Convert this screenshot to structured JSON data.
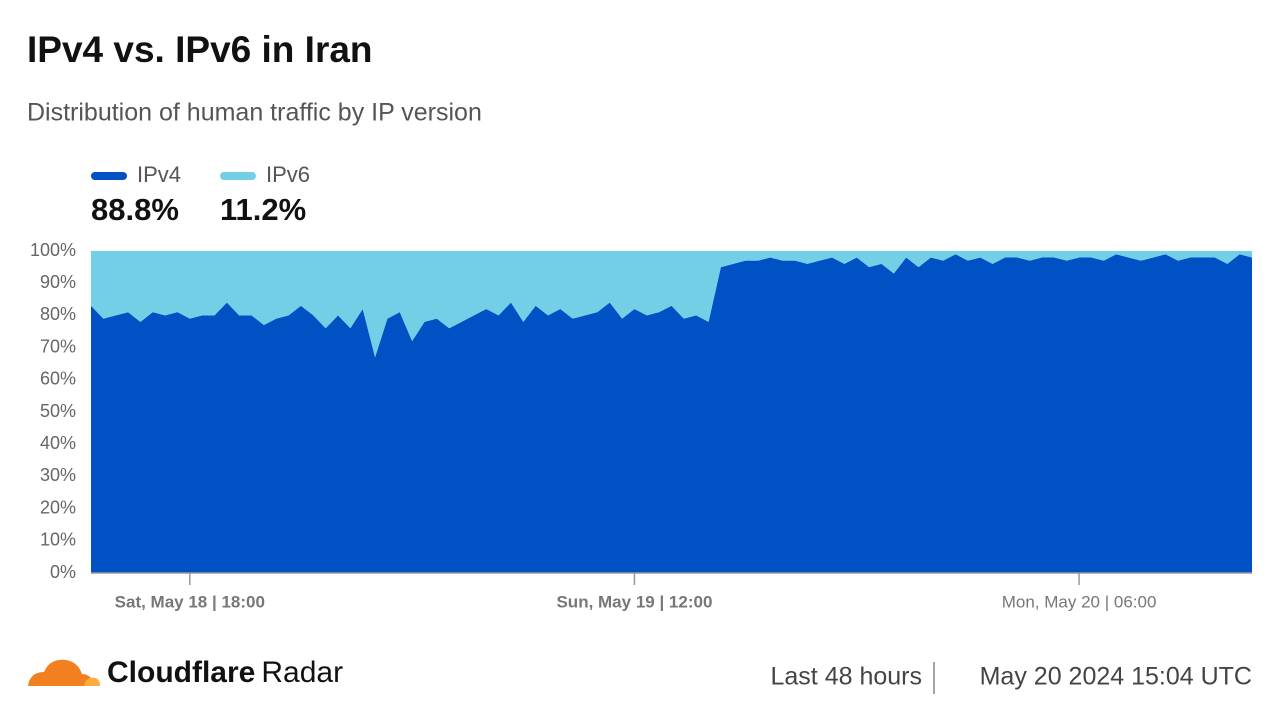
{
  "chart_data": {
    "type": "area",
    "stacked": true,
    "title": "IPv4 vs. IPv6 in Iran",
    "subtitle": "Distribution of human traffic by IP version",
    "x": [
      "May 18 14:00",
      "May 18 14:30",
      "May 18 15:00",
      "May 18 15:30",
      "May 18 16:00",
      "May 18 16:30",
      "May 18 17:00",
      "May 18 17:30",
      "May 18 18:00",
      "May 18 18:30",
      "May 18 19:00",
      "May 18 19:30",
      "May 18 20:00",
      "May 18 20:30",
      "May 18 21:00",
      "May 18 21:30",
      "May 18 22:00",
      "May 18 22:30",
      "May 18 23:00",
      "May 18 23:30",
      "May 19 00:00",
      "May 19 00:30",
      "May 19 01:00",
      "May 19 01:30",
      "May 19 02:00",
      "May 19 02:30",
      "May 19 03:00",
      "May 19 03:30",
      "May 19 04:00",
      "May 19 04:30",
      "May 19 05:00",
      "May 19 05:30",
      "May 19 06:00",
      "May 19 06:30",
      "May 19 07:00",
      "May 19 07:30",
      "May 19 08:00",
      "May 19 08:30",
      "May 19 09:00",
      "May 19 09:30",
      "May 19 10:00",
      "May 19 10:30",
      "May 19 11:00",
      "May 19 11:30",
      "May 19 12:00",
      "May 19 12:30",
      "May 19 13:00",
      "May 19 13:30",
      "May 19 14:00",
      "May 19 14:30",
      "May 19 15:00",
      "May 19 15:30",
      "May 19 16:00",
      "May 19 16:30",
      "May 19 17:00",
      "May 19 17:30",
      "May 19 18:00",
      "May 19 18:30",
      "May 19 19:00",
      "May 19 19:30",
      "May 19 20:00",
      "May 19 20:30",
      "May 19 21:00",
      "May 19 21:30",
      "May 19 22:00",
      "May 19 22:30",
      "May 19 23:00",
      "May 19 23:30",
      "May 20 00:00",
      "May 20 00:30",
      "May 20 01:00",
      "May 20 01:30",
      "May 20 02:00",
      "May 20 02:30",
      "May 20 03:00",
      "May 20 03:30",
      "May 20 04:00",
      "May 20 04:30",
      "May 20 05:00",
      "May 20 05:30",
      "May 20 06:00",
      "May 20 06:30",
      "May 20 07:00",
      "May 20 07:30",
      "May 20 08:00",
      "May 20 08:30",
      "May 20 09:00",
      "May 20 09:30",
      "May 20 10:00",
      "May 20 10:30",
      "May 20 11:00",
      "May 20 11:30",
      "May 20 12:00",
      "May 20 12:30",
      "May 20 13:00"
    ],
    "series": [
      {
        "name": "IPv4",
        "color": "#0051c3",
        "share": "88.8%",
        "values": [
          83,
          79,
          80,
          81,
          78,
          81,
          80,
          81,
          79,
          80,
          80,
          84,
          80,
          80,
          77,
          79,
          80,
          83,
          80,
          76,
          80,
          76,
          82,
          67,
          79,
          81,
          72,
          78,
          79,
          76,
          78,
          80,
          82,
          80,
          84,
          78,
          83,
          80,
          82,
          79,
          80,
          81,
          84,
          79,
          82,
          80,
          81,
          83,
          79,
          80,
          78,
          95,
          96,
          97,
          97,
          98,
          97,
          97,
          96,
          97,
          98,
          96,
          98,
          95,
          96,
          93,
          98,
          95,
          98,
          97,
          99,
          97,
          98,
          96,
          98,
          98,
          97,
          98,
          98,
          97,
          98,
          98,
          97,
          99,
          98,
          97,
          98,
          99,
          97,
          98,
          98,
          98,
          96,
          99,
          98
        ]
      },
      {
        "name": "IPv6",
        "color": "#73cfe6",
        "share": "11.2%",
        "values": [
          17,
          21,
          20,
          19,
          22,
          19,
          20,
          19,
          21,
          20,
          20,
          16,
          20,
          20,
          23,
          21,
          20,
          17,
          20,
          24,
          20,
          24,
          18,
          33,
          21,
          19,
          28,
          22,
          21,
          24,
          22,
          20,
          18,
          20,
          16,
          22,
          17,
          20,
          18,
          21,
          20,
          19,
          16,
          21,
          18,
          20,
          19,
          17,
          21,
          20,
          22,
          5,
          4,
          3,
          3,
          2,
          3,
          3,
          4,
          3,
          2,
          4,
          2,
          5,
          4,
          7,
          2,
          5,
          2,
          3,
          1,
          3,
          2,
          4,
          2,
          2,
          3,
          2,
          2,
          3,
          2,
          2,
          3,
          1,
          2,
          3,
          2,
          1,
          3,
          2,
          2,
          2,
          4,
          1,
          2
        ]
      }
    ],
    "ylim": [
      0,
      100
    ],
    "yticks": [
      {
        "value": 0,
        "label": "0%"
      },
      {
        "value": 10,
        "label": "10%"
      },
      {
        "value": 20,
        "label": "20%"
      },
      {
        "value": 30,
        "label": "30%"
      },
      {
        "value": 40,
        "label": "40%"
      },
      {
        "value": 50,
        "label": "50%"
      },
      {
        "value": 60,
        "label": "60%"
      },
      {
        "value": 70,
        "label": "70%"
      },
      {
        "value": 80,
        "label": "80%"
      },
      {
        "value": 90,
        "label": "90%"
      },
      {
        "value": 100,
        "label": "100%"
      }
    ],
    "xticks": [
      {
        "value": "May 18 18:00",
        "label": "Sat, May 18 | 18:00"
      },
      {
        "value": "May 19 12:00",
        "label": "Sun, May 19 | 12:00"
      },
      {
        "value": "May 20 06:00",
        "label": "Mon, May 20 | 06:00"
      }
    ]
  },
  "brand": {
    "name": "Cloudflare",
    "product": "Radar"
  },
  "footer": {
    "range": "Last 48 hours",
    "timestamp": "May 20 2024 15:04 UTC"
  }
}
